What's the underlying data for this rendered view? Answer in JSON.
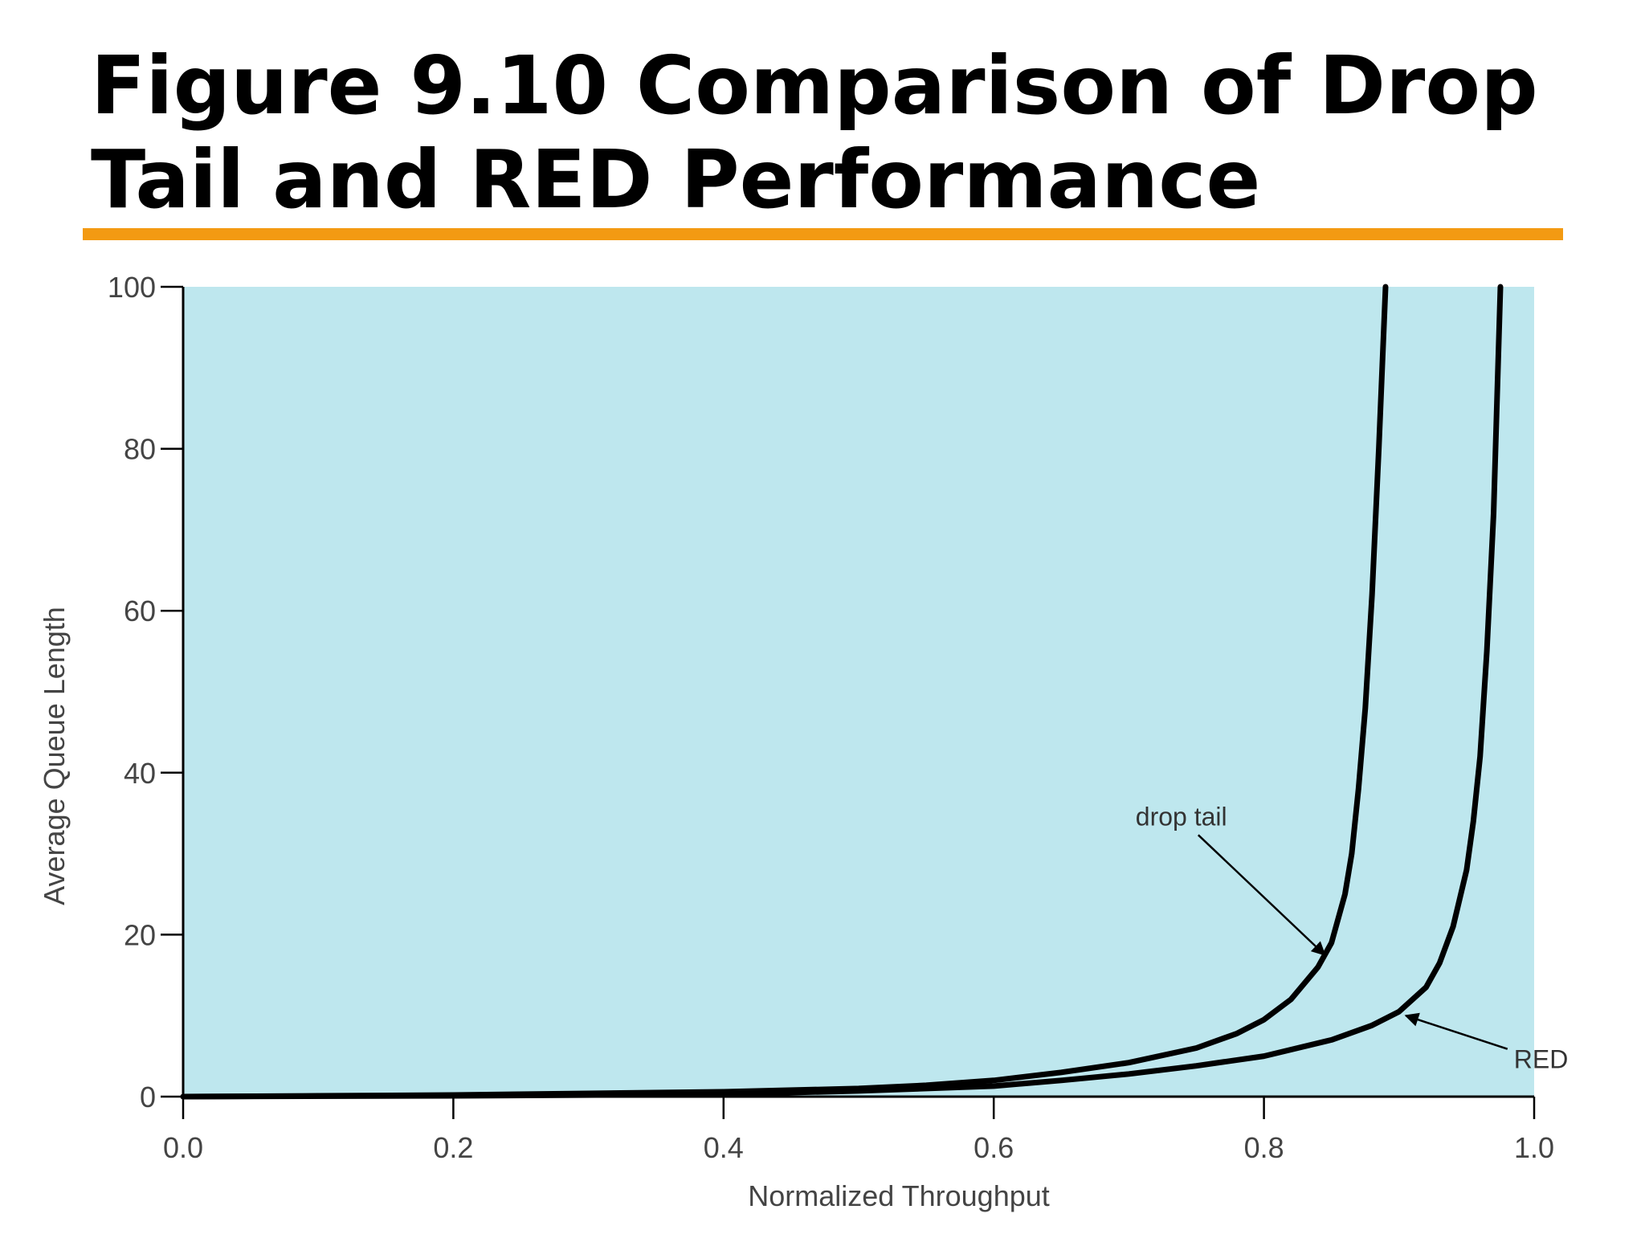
{
  "slide": {
    "title_line1": "Figure 9.10 Comparison of Drop",
    "title_line2": "Tail and RED Performance",
    "accent_color": "#f39a12"
  },
  "chart_data": {
    "type": "line",
    "xlabel": "Normalized Throughput",
    "ylabel": "Average Queue Length",
    "xlim": [
      0.0,
      1.0
    ],
    "ylim": [
      0,
      100
    ],
    "x_ticks": [
      "0.0",
      "0.2",
      "0.4",
      "0.6",
      "0.8",
      "1.0"
    ],
    "x_tick_values": [
      0.0,
      0.2,
      0.4,
      0.6,
      0.8,
      1.0
    ],
    "y_ticks": [
      "0",
      "20",
      "40",
      "60",
      "80",
      "100"
    ],
    "y_tick_values": [
      0,
      20,
      40,
      60,
      80,
      100
    ],
    "grid": false,
    "plot_background": "#bee7ee",
    "line_color": "#000000",
    "series": [
      {
        "x": [
          0.0,
          0.1,
          0.2,
          0.3,
          0.4,
          0.5,
          0.55,
          0.6,
          0.65,
          0.7,
          0.75,
          0.78,
          0.8,
          0.82,
          0.84,
          0.85,
          0.86,
          0.865,
          0.87,
          0.875,
          0.88,
          0.885,
          0.89
        ],
        "y": [
          0,
          0.1,
          0.2,
          0.4,
          0.6,
          1.0,
          1.4,
          2.0,
          3.0,
          4.2,
          6.0,
          7.8,
          9.5,
          12,
          16,
          19,
          25,
          30,
          38,
          48,
          62,
          80,
          100
        ]
      },
      {
        "x": [
          0.0,
          0.2,
          0.4,
          0.5,
          0.6,
          0.65,
          0.7,
          0.75,
          0.8,
          0.85,
          0.88,
          0.9,
          0.92,
          0.93,
          0.94,
          0.95,
          0.955,
          0.96,
          0.965,
          0.97,
          0.975
        ],
        "y": [
          0,
          0.1,
          0.3,
          0.7,
          1.3,
          2.0,
          2.8,
          3.8,
          5.0,
          7.0,
          8.8,
          10.5,
          13.5,
          16.5,
          21,
          28,
          34,
          42,
          55,
          72,
          100
        ]
      }
    ],
    "annotations": [
      {
        "text": "drop tail",
        "series_index": 0,
        "point": [
          0.845,
          17.5
        ],
        "text_pos": [
          0.705,
          33.5
        ]
      },
      {
        "text": "RED",
        "series_index": 1,
        "point": [
          0.905,
          10.0
        ],
        "text_pos": [
          0.985,
          3.5
        ]
      }
    ]
  }
}
